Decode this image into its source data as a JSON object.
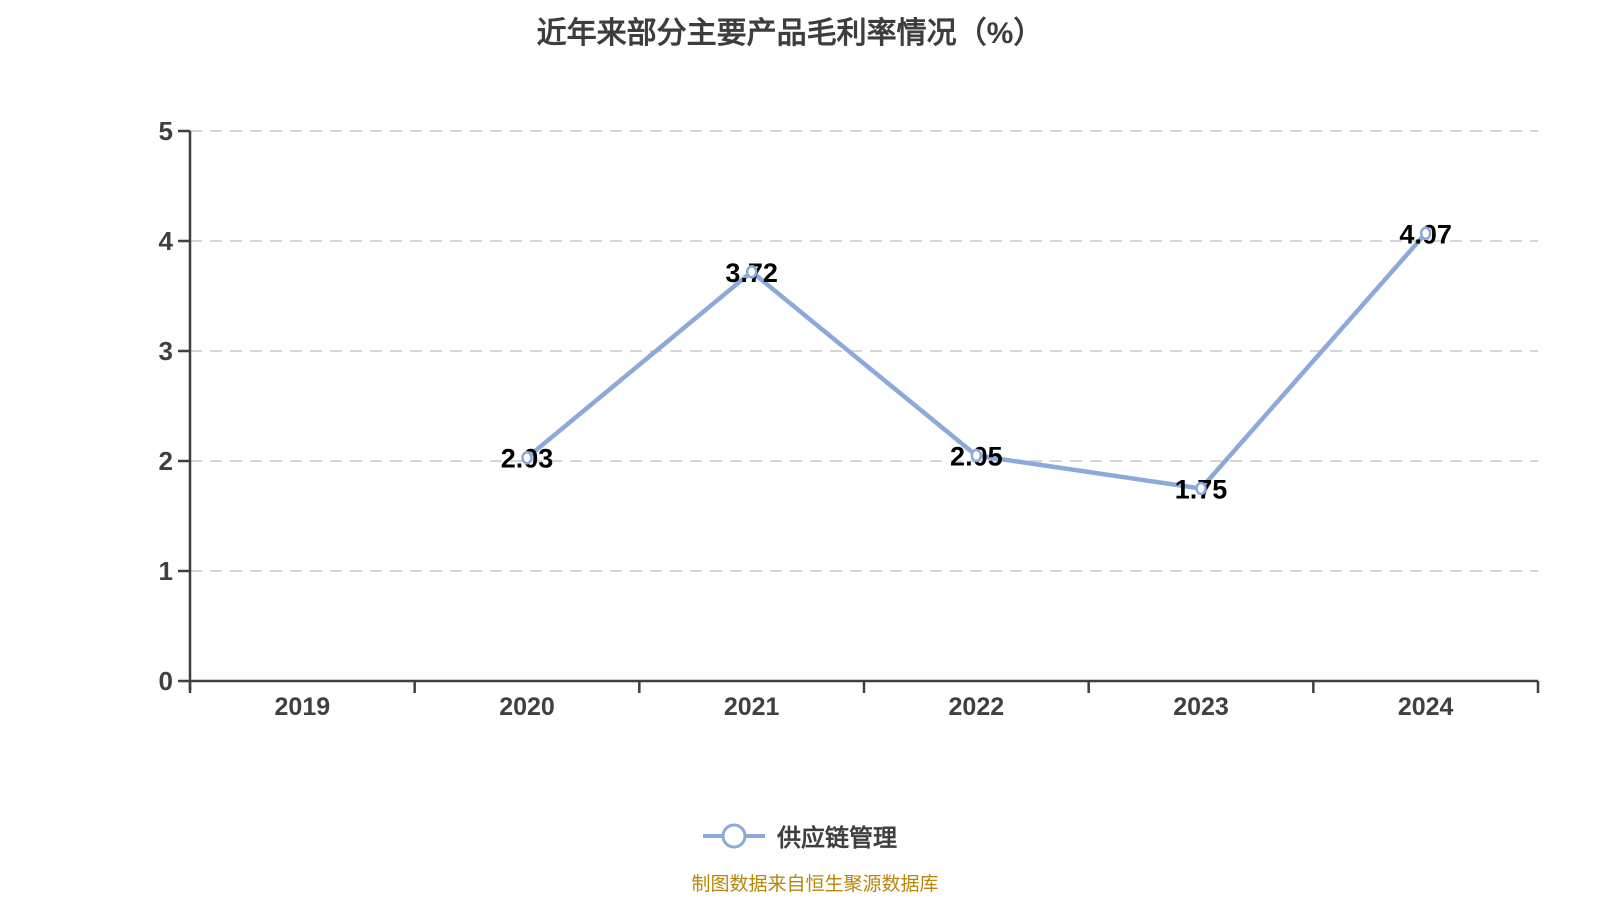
{
  "title": "近年来部分主要产品毛利率情况（%）",
  "legend": {
    "label": "供应链管理"
  },
  "footer": {
    "note": "制图数据来自恒生聚源数据库"
  },
  "colors": {
    "line": "#8ca9db",
    "marker_fill": "#ffffff",
    "grid": "#d6d6d6",
    "axis": "#3f3f3f",
    "tick_text": "#404040",
    "data_label": "#000000",
    "title_text": "#3d3d3d",
    "footer_text": "#b8860b"
  },
  "chart_data": {
    "type": "line",
    "title": "近年来部分主要产品毛利率情况（%）",
    "categories": [
      "2019",
      "2020",
      "2021",
      "2022",
      "2023",
      "2024"
    ],
    "series": [
      {
        "name": "供应链管理",
        "values": [
          null,
          2.03,
          3.72,
          2.05,
          1.75,
          4.07
        ]
      }
    ],
    "data_labels": [
      null,
      "2.03",
      "3.72",
      "2.05",
      "1.75",
      "4.07"
    ],
    "xlabel": "",
    "ylabel": "",
    "ylim": [
      0,
      5
    ],
    "yticks": [
      0,
      1,
      2,
      3,
      4,
      5
    ],
    "grid": "dashed-horizontal",
    "legend_position": "bottom"
  }
}
